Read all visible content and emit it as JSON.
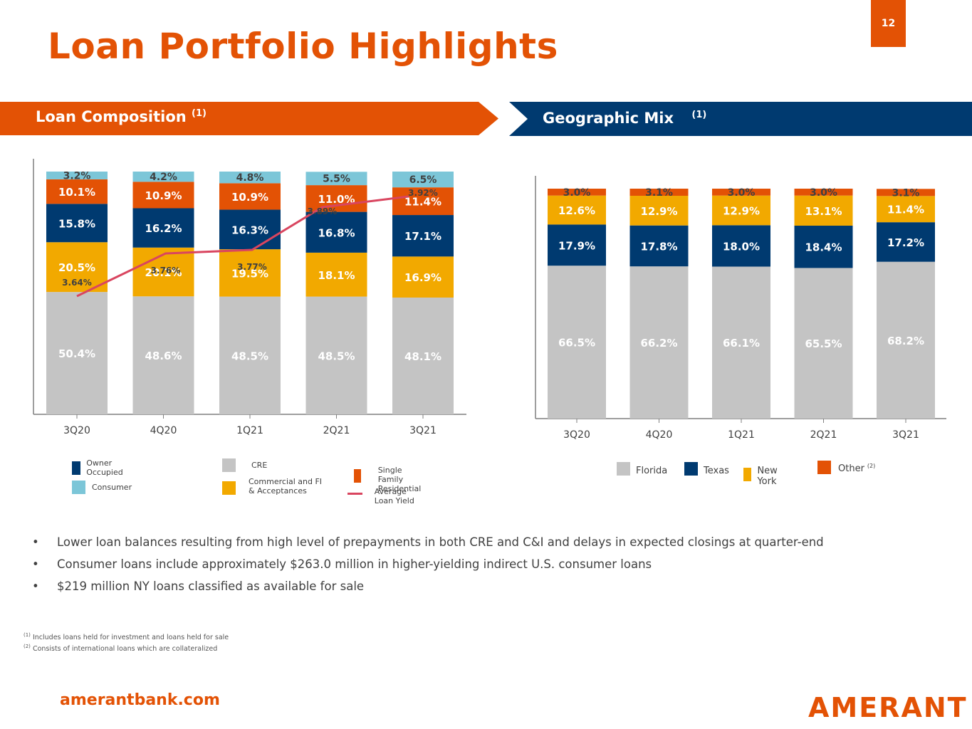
{
  "page": {
    "title": "Loan Portfolio Highlights",
    "page_number": "12",
    "website": "amerantbank.com",
    "logo": "AMERANT"
  },
  "sections": {
    "left": {
      "title": "Loan Composition",
      "footnote_ref": "(1)"
    },
    "right": {
      "title": "Geographic Mix",
      "footnote_ref": "(1)"
    }
  },
  "colors": {
    "brand_orange": "#E35205",
    "navy": "#003A70",
    "gold": "#F2A900",
    "gray": "#C4C4C4",
    "light_blue": "#7CC6D8",
    "yield_line": "#D9455F"
  },
  "chart_data": [
    {
      "type": "bar",
      "stacked": true,
      "title": "Loan Composition",
      "categories": [
        "3Q20",
        "4Q20",
        "1Q21",
        "2Q21",
        "3Q21"
      ],
      "ylim": [
        0,
        100
      ],
      "series": [
        {
          "name": "CRE",
          "color": "#C4C4C4",
          "label_color": "#FFFFFF",
          "values": [
            50.4,
            48.6,
            48.5,
            48.5,
            48.1
          ]
        },
        {
          "name": "Commercial and FI & Acceptances",
          "color": "#F2A900",
          "label_color": "#FFFFFF",
          "values": [
            20.5,
            20.1,
            19.5,
            18.1,
            16.9
          ]
        },
        {
          "name": "Owner Occupied",
          "color": "#003A70",
          "label_color": "#FFFFFF",
          "values": [
            15.8,
            16.2,
            16.3,
            16.8,
            17.1
          ]
        },
        {
          "name": "Single Family Residential",
          "color": "#E35205",
          "label_color": "#FFFFFF",
          "values": [
            10.1,
            10.9,
            10.9,
            11.0,
            11.4
          ]
        },
        {
          "name": "Consumer",
          "color": "#7CC6D8",
          "label_color": "#404040",
          "values": [
            3.2,
            4.2,
            4.8,
            5.5,
            6.5
          ]
        }
      ],
      "line_series": {
        "name": "Average Loan Yield",
        "color": "#D9455F",
        "values": [
          3.64,
          3.76,
          3.77,
          3.89,
          3.92
        ],
        "labels": [
          "3.64%",
          "3.76%",
          "3.77%",
          "3.89%",
          "3.92%"
        ]
      },
      "legend": [
        {
          "label": "Owner Occupied",
          "color": "#003A70",
          "kind": "box"
        },
        {
          "label": "CRE",
          "color": "#C4C4C4",
          "kind": "box"
        },
        {
          "label": "Single Family Residential",
          "color": "#E35205",
          "kind": "box"
        },
        {
          "label": "Consumer",
          "color": "#7CC6D8",
          "kind": "box"
        },
        {
          "label": "Commercial and FI & Acceptances",
          "color": "#F2A900",
          "kind": "box"
        },
        {
          "label": "Average Loan Yield",
          "color": "#D9455F",
          "kind": "line"
        }
      ],
      "legend_placement": "bottom"
    },
    {
      "type": "bar",
      "stacked": true,
      "title": "Geographic Mix",
      "categories": [
        "3Q20",
        "4Q20",
        "1Q21",
        "2Q21",
        "3Q21"
      ],
      "ylim": [
        0,
        100
      ],
      "series": [
        {
          "name": "Florida",
          "color": "#C4C4C4",
          "label_color": "#FFFFFF",
          "values": [
            66.5,
            66.2,
            66.1,
            65.5,
            68.2
          ]
        },
        {
          "name": "Texas",
          "color": "#003A70",
          "label_color": "#FFFFFF",
          "values": [
            17.9,
            17.8,
            18.0,
            18.4,
            17.2
          ]
        },
        {
          "name": "New York",
          "color": "#F2A900",
          "label_color": "#FFFFFF",
          "values": [
            12.6,
            12.9,
            12.9,
            13.1,
            11.4
          ]
        },
        {
          "name": "Other",
          "color": "#E35205",
          "label_color": "#404040",
          "values": [
            3.0,
            3.1,
            3.0,
            3.0,
            3.1
          ]
        }
      ],
      "legend": [
        {
          "label": "Florida",
          "color": "#C4C4C4"
        },
        {
          "label": "Texas",
          "color": "#003A70"
        },
        {
          "label": "New York",
          "color": "#F2A900"
        },
        {
          "label": "Other",
          "color": "#E35205",
          "sup": "(2)"
        }
      ],
      "legend_placement": "bottom"
    }
  ],
  "bullets": [
    "Lower loan balances resulting from high level of prepayments in both CRE and C&I and delays in expected closings at quarter-end",
    "Consumer loans include approximately $263.0 million in higher-yielding indirect U.S. consumer loans",
    "$219 million NY loans classified as available for sale"
  ],
  "bullet_char": "•",
  "footnotes": [
    {
      "ref": "(1)",
      "text": "Includes loans held for investment and loans held for sale"
    },
    {
      "ref": "(2)",
      "text": "Consists of international loans which are collateralized"
    }
  ]
}
